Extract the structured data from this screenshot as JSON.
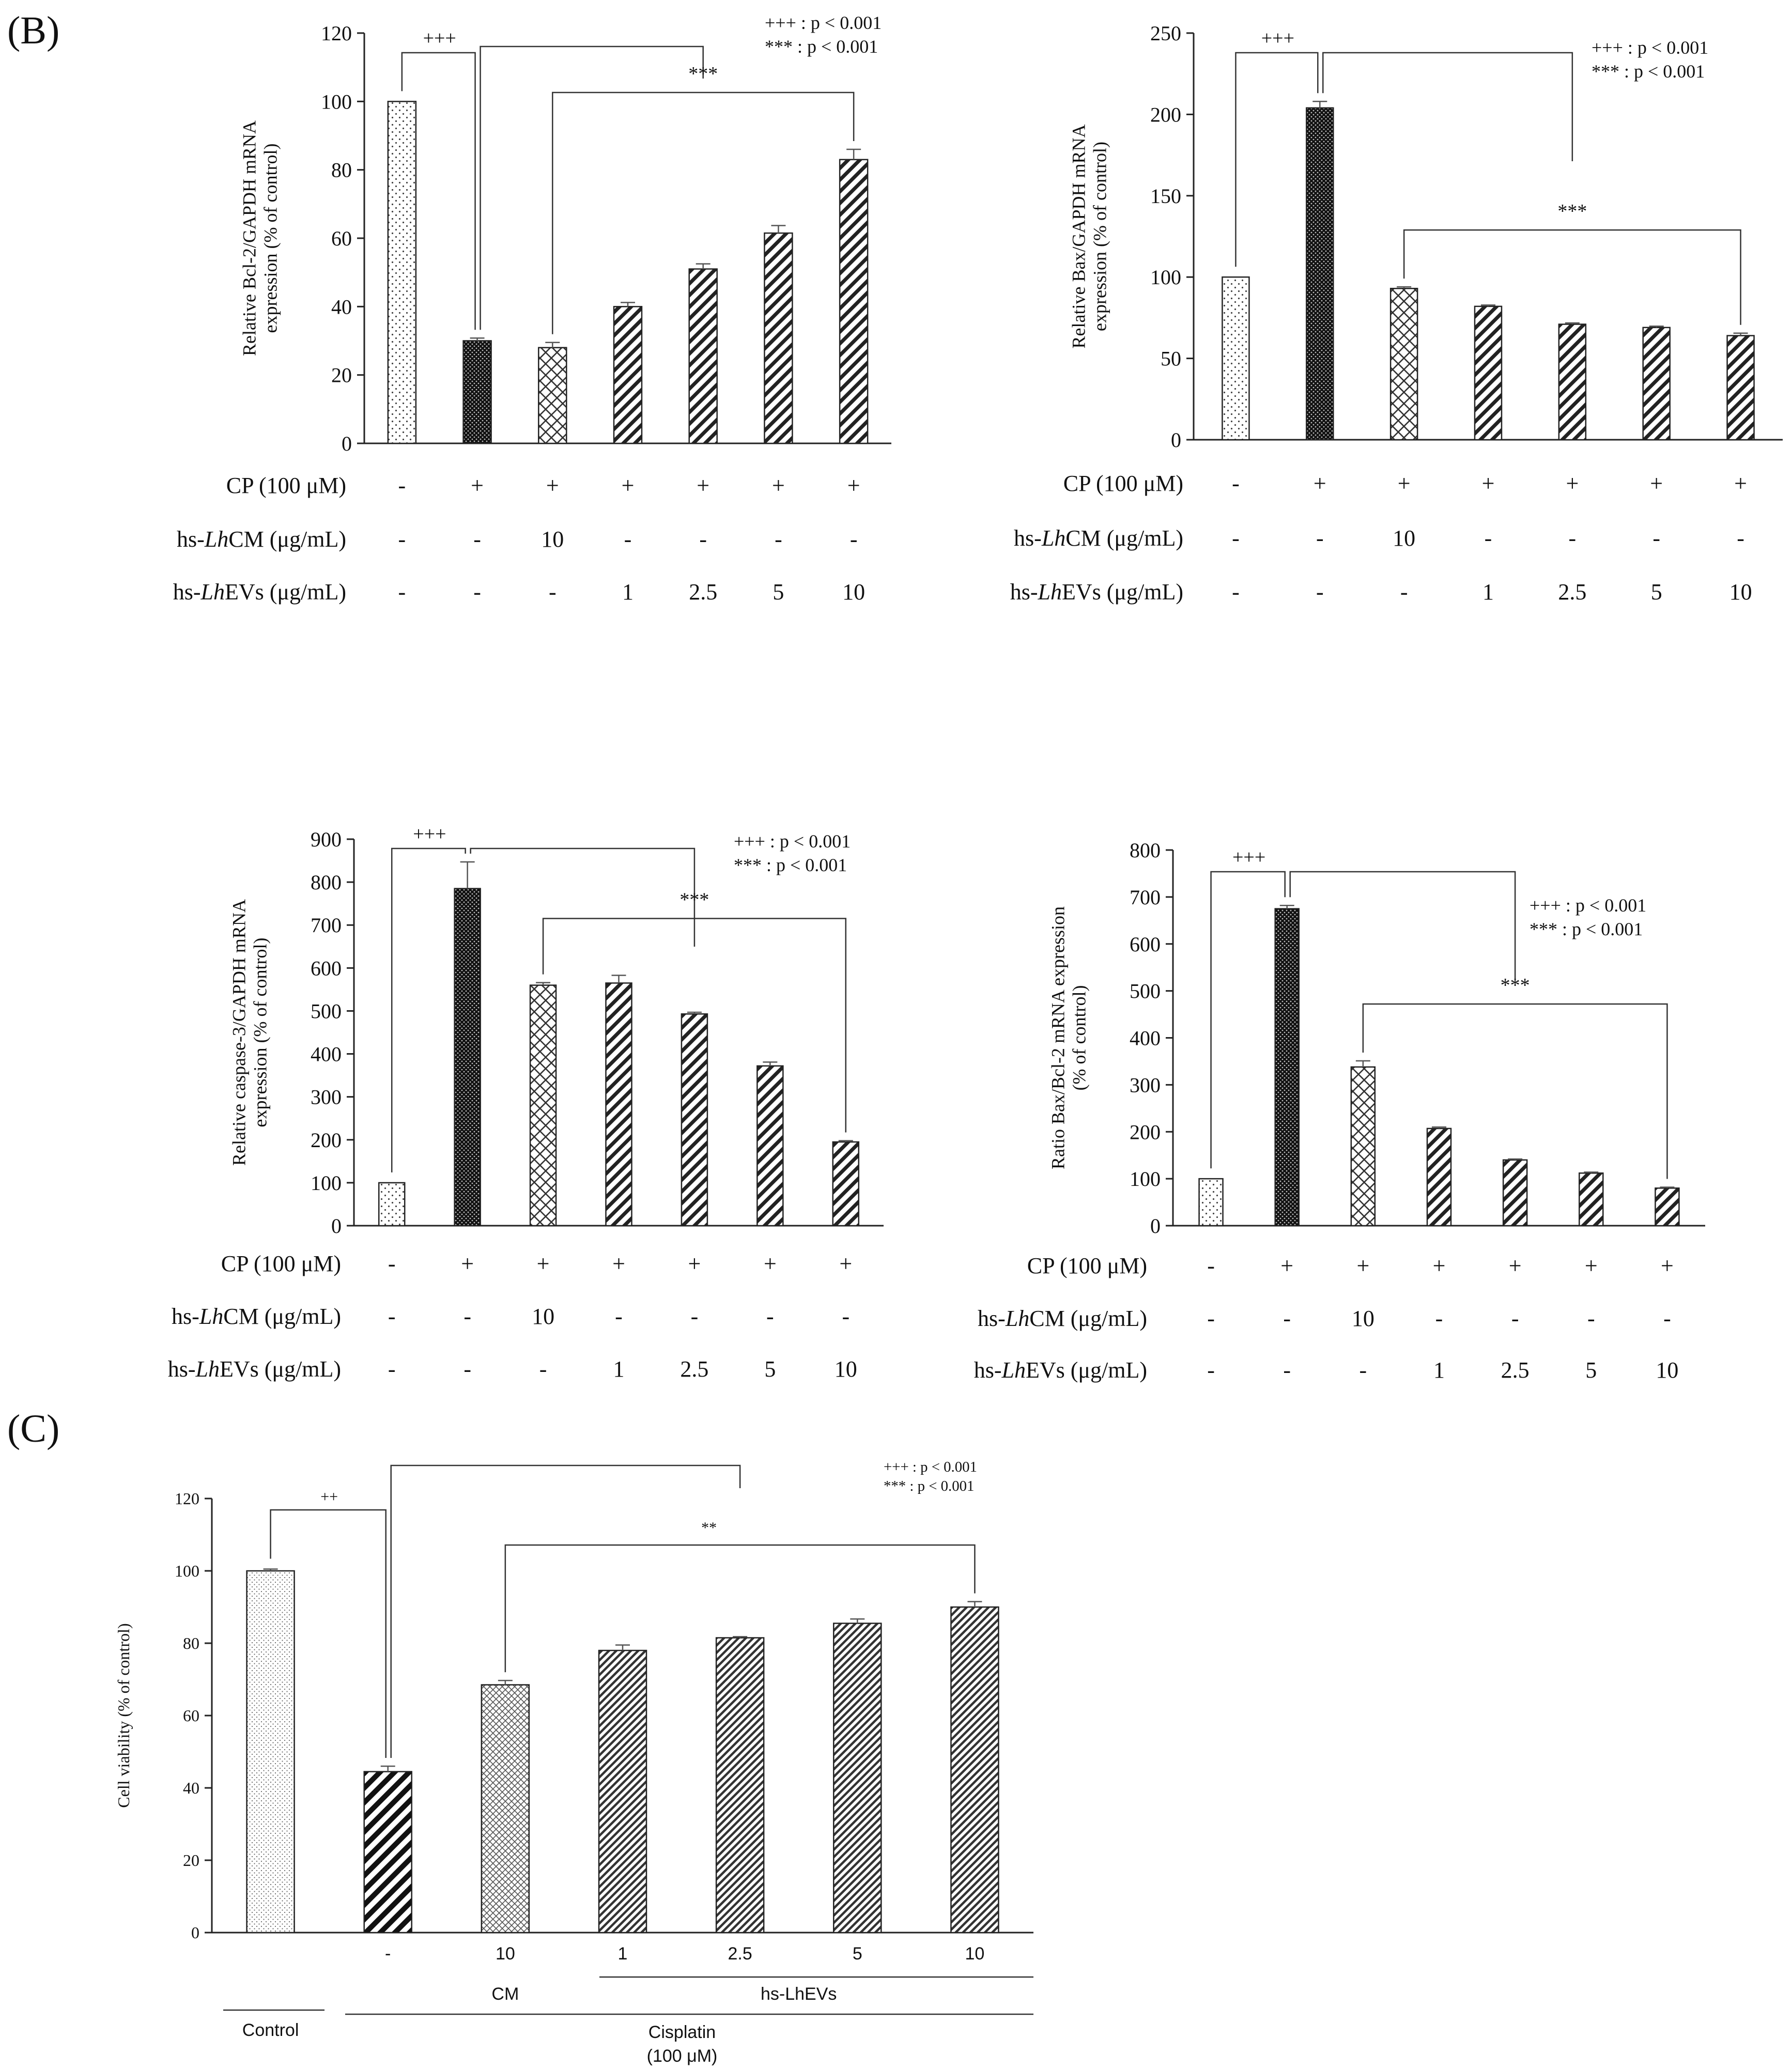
{
  "panel_labels": {
    "b": "(B)",
    "c": "(C)"
  },
  "colors": {
    "ink": "#111111",
    "bar_dark": "#1a1a1a"
  },
  "condition_table": {
    "row_labels": {
      "cp": "CP (100 μM)",
      "cm_prefix": "hs-",
      "cm_italic": "Lh",
      "cm_suffix": "CM (μg/mL)",
      "evs_prefix": "hs-",
      "evs_italic": "Lh",
      "evs_suffix": "EVs (μg/mL)"
    },
    "cp": [
      "-",
      "+",
      "+",
      "+",
      "+",
      "+",
      "+"
    ],
    "cm": [
      "-",
      "-",
      "10",
      "-",
      "-",
      "-",
      "-"
    ],
    "evs": [
      "-",
      "-",
      "-",
      "1",
      "2.5",
      "5",
      "10"
    ]
  },
  "chart_data": [
    {
      "id": "bcl2",
      "type": "bar",
      "ylabel_lines": [
        "Relative Bcl-2/GAPDH mRNA",
        "expression (% of control)"
      ],
      "ylim": [
        0,
        120
      ],
      "yticks": [
        0,
        20,
        40,
        60,
        80,
        100,
        120
      ],
      "values": [
        100,
        30,
        28,
        40,
        51,
        61.5,
        83
      ],
      "errors": [
        0,
        0.8,
        1.5,
        1.2,
        1.5,
        2.2,
        3
      ],
      "patterns": [
        "dots",
        "dense",
        "cross",
        "diag",
        "diag",
        "diag",
        "diag"
      ],
      "legend_lines": [
        "+++ : p < 0.001",
        "*** : p < 0.001"
      ],
      "sig_cp": "+++",
      "sig_treat": "***"
    },
    {
      "id": "bax",
      "type": "bar",
      "ylabel_lines": [
        "Relative Bax/GAPDH mRNA",
        "expression (% of control)"
      ],
      "ylim": [
        0,
        250
      ],
      "yticks": [
        0,
        50,
        100,
        150,
        200,
        250
      ],
      "values": [
        100,
        204,
        93,
        82,
        71,
        69,
        64
      ],
      "errors": [
        0,
        4,
        1,
        0.8,
        0.8,
        0.8,
        1.5
      ],
      "patterns": [
        "dots",
        "dense",
        "cross",
        "diag",
        "diag",
        "diag",
        "diag"
      ],
      "legend_lines": [
        "+++ : p < 0.001",
        "*** : p < 0.001"
      ],
      "sig_cp": "+++",
      "sig_treat": "***"
    },
    {
      "id": "caspase3",
      "type": "bar",
      "ylabel_lines": [
        "Relative caspase-3/GAPDH mRNA",
        "expression (% of control)"
      ],
      "ylim": [
        0,
        900
      ],
      "yticks": [
        0,
        100,
        200,
        300,
        400,
        500,
        600,
        700,
        800,
        900
      ],
      "values": [
        100,
        785,
        560,
        565,
        493,
        372,
        195
      ],
      "errors": [
        0,
        62,
        6,
        18,
        4,
        9,
        3
      ],
      "patterns": [
        "dots",
        "dense",
        "cross",
        "diag",
        "diag",
        "diag",
        "diag"
      ],
      "legend_lines": [
        "+++ : p < 0.001",
        "*** : p < 0.001"
      ],
      "sig_cp": "+++",
      "sig_treat": "***"
    },
    {
      "id": "ratio",
      "type": "bar",
      "ylabel_lines": [
        "Ratio Bax/Bcl-2 mRNA expression",
        "(% of control)"
      ],
      "ylim": [
        0,
        800
      ],
      "yticks": [
        0,
        100,
        200,
        300,
        400,
        500,
        600,
        700,
        800
      ],
      "values": [
        100,
        675,
        338,
        207,
        140,
        112,
        80
      ],
      "errors": [
        0,
        7,
        13,
        3,
        2,
        2,
        2
      ],
      "patterns": [
        "dots",
        "dense",
        "cross",
        "diag",
        "diag",
        "diag",
        "diag"
      ],
      "legend_lines": [
        "+++ : p < 0.001",
        "*** : p < 0.001"
      ],
      "sig_cp": "+++",
      "sig_treat": "***"
    },
    {
      "id": "viability",
      "type": "bar",
      "ylabel_lines": [
        "Cell viability (% of control)"
      ],
      "ylim": [
        0,
        120
      ],
      "yticks": [
        0,
        20,
        40,
        60,
        80,
        100,
        120
      ],
      "values": [
        100,
        44.5,
        68.5,
        78,
        81.5,
        85.5,
        90
      ],
      "errors": [
        0.5,
        1.5,
        1.2,
        1.5,
        0.3,
        1.2,
        1.5
      ],
      "patterns": [
        "dots_fine",
        "diag_bold",
        "cross_fine",
        "diag_fine",
        "diag_fine",
        "diag_fine",
        "diag_fine"
      ],
      "x_ticks": [
        "",
        "-",
        "10",
        "1",
        "2.5",
        "5",
        "10"
      ],
      "group_labels": {
        "control": "Control",
        "cm": "CM",
        "evs": "hs-LhEVs",
        "cisplatin": "Cisplatin",
        "cisplatin_dose": "(100 μM)"
      },
      "legend_lines": [
        "+++ : p < 0.001",
        "*** : p < 0.001"
      ],
      "sig_cp": "++",
      "sig_treat": "**"
    }
  ]
}
